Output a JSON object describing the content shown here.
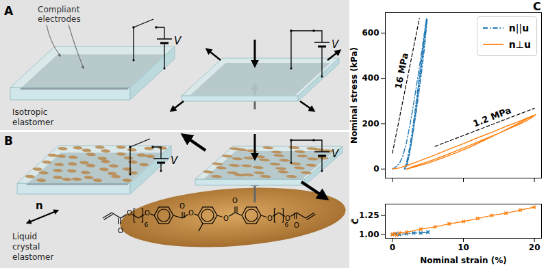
{
  "diagram": {
    "panels": [
      {
        "label": "A",
        "annotation": [
          "Compliant",
          "electrodes"
        ],
        "material": [
          "Isotropic",
          "elastomer"
        ],
        "voltage": "V"
      },
      {
        "label": "B",
        "material": [
          "Liquid",
          "crystal",
          "elastomer"
        ],
        "voltage": "V",
        "director": "n",
        "molecule": {
          "atom": "O",
          "repeat": "6"
        }
      },
      {
        "label": "C"
      }
    ]
  },
  "chart_data": [
    {
      "type": "line",
      "ylabel": "Nominal stress (kPa)",
      "xlim": [
        -1,
        21
      ],
      "xticks": [
        0,
        10,
        20
      ],
      "ylim": [
        -40,
        690
      ],
      "yticks": [
        0,
        200,
        400,
        600
      ],
      "tick_labels": "y",
      "grid": false,
      "legend": "upper right",
      "series": [
        {
          "name": "n||u",
          "color": "#1f77b4",
          "line_style": "dashdot",
          "x": [
            0,
            0.5,
            1,
            1.5,
            2,
            2.5,
            3,
            3.5,
            4,
            4.5,
            4.8,
            4.7,
            4.4,
            4.0,
            3.6,
            3.2,
            2.8,
            2.4,
            2.0,
            1.7,
            2.2,
            2.8,
            3.4,
            4.0,
            4.5,
            4.9,
            4.8,
            4.5,
            4.1,
            3.7,
            3.3,
            2.9,
            2.5,
            2.1,
            1.8
          ],
          "values": [
            0,
            10,
            25,
            60,
            120,
            200,
            290,
            390,
            490,
            600,
            665,
            640,
            560,
            460,
            360,
            260,
            170,
            90,
            30,
            0,
            40,
            140,
            260,
            400,
            530,
            660,
            640,
            560,
            460,
            360,
            260,
            160,
            80,
            20,
            0
          ]
        },
        {
          "name": "n⊥u",
          "color": "#ff7f0e",
          "line_style": "solid",
          "x": [
            0,
            1,
            2,
            4,
            6,
            8,
            10,
            12,
            14,
            16,
            18,
            20,
            19,
            17,
            15,
            13,
            11,
            9,
            7,
            5,
            3,
            2,
            3,
            5,
            7,
            9,
            11,
            13,
            15,
            17,
            19,
            20.2
          ],
          "values": [
            0,
            5,
            15,
            38,
            62,
            88,
            112,
            138,
            162,
            188,
            212,
            238,
            222,
            190,
            158,
            128,
            98,
            72,
            48,
            26,
            8,
            0,
            12,
            32,
            55,
            80,
            106,
            132,
            158,
            186,
            214,
            240
          ]
        }
      ],
      "reference_lines": [
        {
          "label": "16 MPa",
          "x": [
            0,
            3.8
          ],
          "values": [
            70,
            665
          ],
          "color": "#000000",
          "line_style": "dashed"
        },
        {
          "label": "1.2 MPa",
          "x": [
            6,
            20
          ],
          "values": [
            100,
            268
          ],
          "color": "#000000",
          "line_style": "dashed"
        }
      ]
    },
    {
      "type": "line",
      "xlabel": "Nominal strain (%)",
      "ylabel": "C̃",
      "xlim": [
        -1,
        21
      ],
      "xticks": [
        0,
        10,
        20
      ],
      "ylim": [
        0.95,
        1.4
      ],
      "yticks": [
        {
          "value": 1,
          "label": "1.00"
        },
        {
          "value": 1.25,
          "label": "1.25"
        }
      ],
      "grid": false,
      "series": [
        {
          "color": "#1f77b4",
          "line_style": "dashdot",
          "marker": "x",
          "x": [
            0,
            0.5,
            1,
            2,
            3,
            4,
            5
          ],
          "values": [
            1.0,
            1.01,
            1.0,
            1.01,
            1.02,
            1.02,
            1.03
          ]
        },
        {
          "color": "#ff7f0e",
          "line_style": "solid",
          "marker": "x",
          "x": [
            0,
            0.3,
            0.6,
            1,
            2,
            4,
            6,
            8,
            10,
            12,
            14,
            16,
            18,
            20
          ],
          "values": [
            1.0,
            1.01,
            0.99,
            1.02,
            1.03,
            1.07,
            1.1,
            1.14,
            1.17,
            1.21,
            1.25,
            1.28,
            1.32,
            1.36
          ]
        }
      ]
    }
  ]
}
